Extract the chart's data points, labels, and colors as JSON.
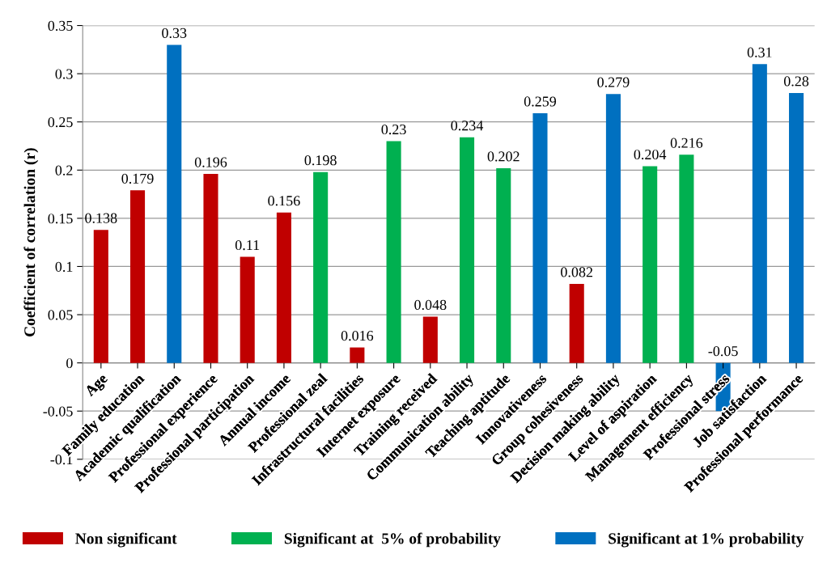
{
  "chart_data": {
    "type": "bar",
    "ylabel": "Coefficient of correlation (r)",
    "categories": [
      "Age",
      "Family education",
      "Academic qualification",
      "Professional experience",
      "Professional participation",
      "Annual income",
      "Professional zeal",
      "Infrastructural facilities",
      "Internet exposure",
      "Training received",
      "Communication ability",
      "Teaching aptitude",
      "Innovativeness",
      "Group cohesiveness",
      "Decision making ability",
      "Level of aspiration",
      "Management efficiency",
      "Professional stress",
      "Job satisfaction",
      "Professional performance"
    ],
    "stacked": true,
    "series": [
      {
        "name": "Non significant",
        "color": "#c00000",
        "values": [
          0.138,
          0.179,
          null,
          0.196,
          0.11,
          0.156,
          null,
          0.016,
          null,
          0.048,
          null,
          null,
          null,
          0.082,
          null,
          null,
          null,
          null,
          null,
          null
        ]
      },
      {
        "name": "Significant at  5% of probability",
        "color": "#00b050",
        "values": [
          null,
          null,
          null,
          null,
          null,
          null,
          0.198,
          null,
          0.23,
          null,
          0.234,
          0.202,
          null,
          null,
          null,
          0.204,
          0.216,
          null,
          null,
          null
        ]
      },
      {
        "name": "Significant at 1% probability",
        "color": "#0070c0",
        "values": [
          null,
          null,
          0.33,
          null,
          null,
          null,
          null,
          null,
          null,
          null,
          null,
          null,
          0.259,
          null,
          0.279,
          null,
          null,
          -0.05,
          0.31,
          0.28
        ]
      }
    ],
    "ylim": [
      -0.1,
      0.35
    ],
    "yticks": [
      -0.1,
      -0.05,
      0,
      0.05,
      0.1,
      0.15,
      0.2,
      0.25,
      0.3,
      0.35
    ],
    "grid": "y",
    "legend": "bottom",
    "data_labels": true
  }
}
